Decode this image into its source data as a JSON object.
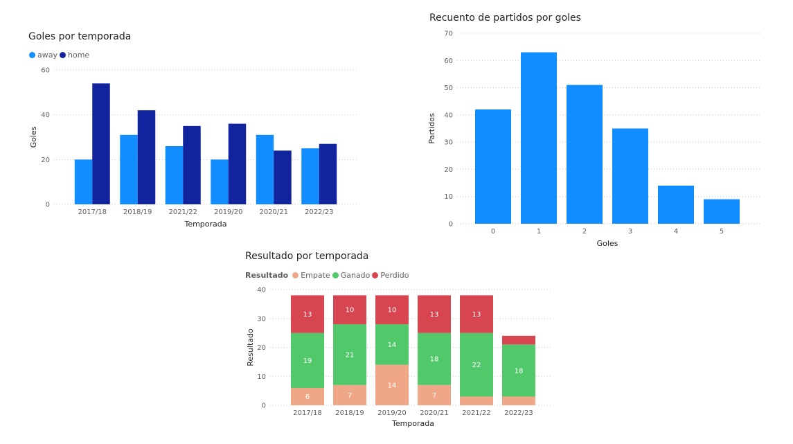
{
  "chart_data": [
    {
      "id": "goles_temporada",
      "type": "bar",
      "title": "Goles por temporada",
      "xlabel": "Temporada",
      "ylabel": "Goles",
      "ylim": [
        0,
        60
      ],
      "yticks": [
        0,
        20,
        40,
        60
      ],
      "grid": true,
      "legend_position": "top-left",
      "categories": [
        "2017/18",
        "2018/19",
        "2021/22",
        "2019/20",
        "2020/21",
        "2022/23"
      ],
      "series": [
        {
          "name": "away",
          "color": "#118dff",
          "values": [
            20,
            31,
            26,
            20,
            31,
            25
          ]
        },
        {
          "name": "home",
          "color": "#12239e",
          "values": [
            54,
            42,
            35,
            36,
            24,
            27
          ]
        }
      ]
    },
    {
      "id": "recuento_partidos",
      "type": "bar",
      "title": "Recuento de partidos por goles",
      "xlabel": "Goles",
      "ylabel": "Partidos",
      "ylim": [
        0,
        70
      ],
      "yticks": [
        0,
        10,
        20,
        30,
        40,
        50,
        60,
        70
      ],
      "grid": true,
      "categories": [
        "0",
        "1",
        "2",
        "3",
        "4",
        "5"
      ],
      "series": [
        {
          "color": "#118dff",
          "values": [
            42,
            63,
            51,
            35,
            14,
            9
          ]
        }
      ]
    },
    {
      "id": "resultado_temporada",
      "type": "bar",
      "stacked": true,
      "title": "Resultado por temporada",
      "xlabel": "Temporada",
      "ylabel": "Resultado",
      "ylim": [
        0,
        40
      ],
      "yticks": [
        0,
        10,
        20,
        30,
        40
      ],
      "grid": true,
      "legend_title": "Resultado",
      "legend_position": "top-left",
      "categories": [
        "2017/18",
        "2018/19",
        "2019/20",
        "2020/21",
        "2021/22",
        "2022/23"
      ],
      "series": [
        {
          "name": "Empate",
          "color": "#f0a787",
          "values": [
            6,
            7,
            14,
            7,
            3,
            3
          ],
          "labels": [
            "6",
            "7",
            "14",
            "7",
            "",
            ""
          ]
        },
        {
          "name": "Ganado",
          "color": "#51c86a",
          "values": [
            19,
            21,
            14,
            18,
            22,
            18
          ],
          "labels": [
            "19",
            "21",
            "14",
            "18",
            "22",
            "18"
          ]
        },
        {
          "name": "Perdido",
          "color": "#d64550",
          "values": [
            13,
            10,
            10,
            13,
            13,
            3
          ],
          "labels": [
            "13",
            "10",
            "10",
            "13",
            "13",
            ""
          ]
        }
      ]
    }
  ]
}
